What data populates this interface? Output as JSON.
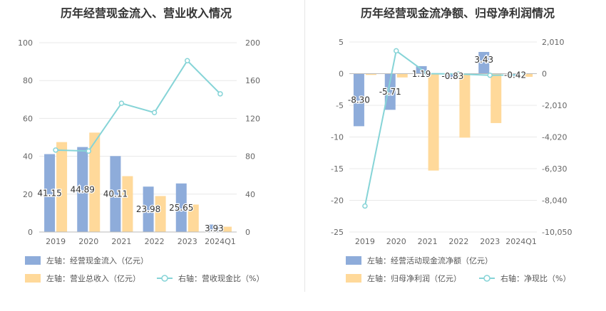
{
  "chart_data": [
    {
      "type": "bar",
      "title": "历年经营现金流入、营业收入情况",
      "categories": [
        "2019",
        "2020",
        "2021",
        "2022",
        "2023",
        "2024Q1"
      ],
      "left_axis": {
        "ylim": [
          0,
          100
        ],
        "ticks": [
          0,
          20,
          40,
          60,
          80,
          100
        ]
      },
      "right_axis": {
        "ylim": [
          0,
          200
        ],
        "ticks": [
          0,
          40,
          80,
          120,
          160,
          200
        ]
      },
      "series": [
        {
          "name": "左轴：经营现金流入（亿元）",
          "kind": "bar",
          "axis": "left",
          "color": "#8EACDA",
          "values": [
            41.15,
            44.89,
            40.11,
            23.98,
            25.65,
            3.93
          ],
          "labels": [
            "41.15",
            "44.89",
            "40.11",
            "23.98",
            "25.65",
            "3.93"
          ]
        },
        {
          "name": "左轴：营业总收入（亿元）",
          "kind": "bar",
          "axis": "left",
          "color": "#FFD99A",
          "values": [
            47.5,
            52.5,
            29.5,
            19.0,
            14.5,
            2.8
          ]
        },
        {
          "name": "右轴：营收现金比（%）",
          "kind": "line",
          "axis": "right",
          "color": "#86D4D7",
          "values": [
            86.6,
            85.5,
            136.0,
            126.2,
            181.0,
            146.0
          ]
        }
      ],
      "grid": true,
      "legend_position": "bottom-left"
    },
    {
      "type": "bar",
      "title": "历年经营现金流净额、归母净利润情况",
      "categories": [
        "2019",
        "2020",
        "2021",
        "2022",
        "2023",
        "2024Q1"
      ],
      "left_axis": {
        "ylim": [
          -25,
          5
        ],
        "ticks": [
          -25,
          -20,
          -15,
          -10,
          -5,
          0,
          5
        ]
      },
      "right_axis": {
        "ylim": [
          -10050,
          2010
        ],
        "ticks": [
          "-10,050",
          "-8,040",
          "-6,030",
          "-4,020",
          "-2,010",
          "0",
          "2,010"
        ]
      },
      "series": [
        {
          "name": "左轴：经营活动现金流净额（亿元）",
          "kind": "bar",
          "axis": "left",
          "color": "#8EACDA",
          "values": [
            -8.3,
            -5.71,
            1.19,
            -0.83,
            3.43,
            -0.42
          ],
          "labels": [
            "-8.30",
            "-5.71",
            "1.19",
            "-0.83",
            "3.43",
            "-0.42"
          ]
        },
        {
          "name": "左轴：归母净利润（亿元）",
          "kind": "bar",
          "axis": "left",
          "color": "#FFD99A",
          "values": [
            -0.2,
            -0.6,
            -15.3,
            -10.1,
            -7.8,
            -0.5
          ]
        },
        {
          "name": "右轴：净现比（%）",
          "kind": "line",
          "axis": "right",
          "color": "#86D4D7",
          "values": [
            -8400,
            1450,
            0,
            -20,
            -100,
            -80
          ]
        }
      ],
      "grid": true,
      "legend_position": "bottom-left"
    }
  ]
}
